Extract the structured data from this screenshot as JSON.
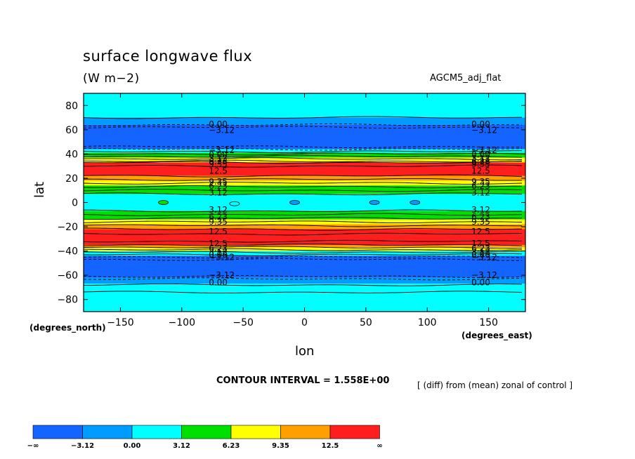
{
  "title": "surface longwave flux",
  "units": "(W m−2)",
  "model": "AGCM5_adj_flat",
  "xlabel": "lon",
  "ylabel": "lat",
  "x_axis_title": "(degrees_east)",
  "y_axis_title": "(degrees_north)",
  "contour_interval": "CONTOUR INTERVAL = 1.558E+00",
  "diff_note": "[ (diff) from (mean) zonal of control ]",
  "chart_data": {
    "type": "heatmap",
    "xlim": [
      -180,
      180
    ],
    "ylim": [
      -90,
      90
    ],
    "xticks": [
      -150,
      -100,
      -50,
      0,
      50,
      100,
      150
    ],
    "xtick_labels": [
      "−150",
      "−100",
      "−50",
      "0",
      "50",
      "100",
      "150"
    ],
    "yticks": [
      80,
      60,
      40,
      20,
      0,
      -20,
      -40,
      -60,
      -80
    ],
    "ytick_labels": [
      "80",
      "60",
      "40",
      "20",
      "0",
      "−20",
      "−40",
      "−60",
      "−80"
    ],
    "levels": [
      -3.12,
      0.0,
      3.12,
      6.23,
      9.35,
      12.5
    ],
    "colorbar": {
      "colors": [
        "#1464ff",
        "#009cff",
        "#00ffff",
        "#00e000",
        "#ffff00",
        "#ffa000",
        "#ff1e1e"
      ],
      "labels": [
        "−∞",
        "−3.12",
        "0.00",
        "3.12",
        "6.23",
        "9.35",
        "12.5",
        "∞"
      ]
    },
    "bands": [
      {
        "lat": [
          70,
          90
        ],
        "value": 0.5
      },
      {
        "lat": [
          64,
          70
        ],
        "value": -1.5
      },
      {
        "lat": [
          44,
          64
        ],
        "value": -4.5
      },
      {
        "lat": [
          41,
          44
        ],
        "value": 1.5
      },
      {
        "lat": [
          37,
          41
        ],
        "value": 4.5
      },
      {
        "lat": [
          33,
          37
        ],
        "value": 8.0
      },
      {
        "lat": [
          22,
          33
        ],
        "value": 14.0
      },
      {
        "lat": [
          18,
          22
        ],
        "value": 11.0
      },
      {
        "lat": [
          14,
          18
        ],
        "value": 8.0
      },
      {
        "lat": [
          7,
          14
        ],
        "value": 4.5
      },
      {
        "lat": [
          -7,
          7
        ],
        "value": 1.5
      },
      {
        "lat": [
          -14,
          -7
        ],
        "value": 4.5
      },
      {
        "lat": [
          -18,
          -14
        ],
        "value": 8.0
      },
      {
        "lat": [
          -22,
          -18
        ],
        "value": 11.0
      },
      {
        "lat": [
          -35,
          -22
        ],
        "value": 14.0
      },
      {
        "lat": [
          -37,
          -35
        ],
        "value": 11.0
      },
      {
        "lat": [
          -40,
          -37
        ],
        "value": 8.0
      },
      {
        "lat": [
          -44,
          -40
        ],
        "value": 3.0
      },
      {
        "lat": [
          -62,
          -44
        ],
        "value": -4.5
      },
      {
        "lat": [
          -67,
          -62
        ],
        "value": -1.5
      },
      {
        "lat": [
          -90,
          -67
        ],
        "value": 0.5
      }
    ],
    "contour_lines": [
      {
        "lat": 70,
        "style": "solid"
      },
      {
        "lat": 64,
        "style": "dashed"
      },
      {
        "lat": 62,
        "style": "dashed"
      },
      {
        "lat": 46,
        "style": "dashed"
      },
      {
        "lat": 44,
        "style": "dashed"
      },
      {
        "lat": 42,
        "style": "solid"
      },
      {
        "lat": 40,
        "style": "solid"
      },
      {
        "lat": 38,
        "style": "solid"
      },
      {
        "lat": 36,
        "style": "solid"
      },
      {
        "lat": 34,
        "style": "solid"
      },
      {
        "lat": 33,
        "style": "solid"
      },
      {
        "lat": 30,
        "style": "solid"
      },
      {
        "lat": 22,
        "style": "solid"
      },
      {
        "lat": 19,
        "style": "solid"
      },
      {
        "lat": 16,
        "style": "solid"
      },
      {
        "lat": 13,
        "style": "solid"
      },
      {
        "lat": 10,
        "style": "solid"
      },
      {
        "lat": 7,
        "style": "solid"
      },
      {
        "lat": -7,
        "style": "solid"
      },
      {
        "lat": -10,
        "style": "solid"
      },
      {
        "lat": -13,
        "style": "solid"
      },
      {
        "lat": -16,
        "style": "solid"
      },
      {
        "lat": -19,
        "style": "solid"
      },
      {
        "lat": -22,
        "style": "solid"
      },
      {
        "lat": -26,
        "style": "solid"
      },
      {
        "lat": -32,
        "style": "solid"
      },
      {
        "lat": -35,
        "style": "solid"
      },
      {
        "lat": -37,
        "style": "solid"
      },
      {
        "lat": -39,
        "style": "solid"
      },
      {
        "lat": -41,
        "style": "solid"
      },
      {
        "lat": -43,
        "style": "solid"
      },
      {
        "lat": -45,
        "style": "dashed"
      },
      {
        "lat": -47,
        "style": "dashed"
      },
      {
        "lat": -61,
        "style": "dashed"
      },
      {
        "lat": -63,
        "style": "dashed"
      },
      {
        "lat": -68,
        "style": "solid"
      },
      {
        "lat": -74,
        "style": "solid"
      }
    ],
    "contour_labels": [
      {
        "lat": 64.5,
        "text": "0.00"
      },
      {
        "lat": 59.5,
        "text": "−3.12"
      },
      {
        "lat": 43,
        "text": "−3.12"
      },
      {
        "lat": 39.5,
        "text": "0.00"
      },
      {
        "lat": 36.5,
        "text": "3.12"
      },
      {
        "lat": 34,
        "text": "6.23"
      },
      {
        "lat": 31.5,
        "text": "9.35"
      },
      {
        "lat": 26,
        "text": "12.5"
      },
      {
        "lat": 17,
        "text": "9.35"
      },
      {
        "lat": 13.5,
        "text": "6.23"
      },
      {
        "lat": 8,
        "text": "3.12"
      },
      {
        "lat": -6,
        "text": "3.12"
      },
      {
        "lat": -12,
        "text": "6.23"
      },
      {
        "lat": -16,
        "text": "9.35"
      },
      {
        "lat": -24,
        "text": "12.5"
      },
      {
        "lat": -34,
        "text": "12.5"
      },
      {
        "lat": -38,
        "text": "6.23"
      },
      {
        "lat": -41,
        "text": "3.12"
      },
      {
        "lat": -43,
        "text": "0.00"
      },
      {
        "lat": -45,
        "text": "−3.12"
      },
      {
        "lat": -60,
        "text": "−3.12"
      },
      {
        "lat": -66,
        "text": "0.00"
      }
    ],
    "contour_label_lons": [
      -78,
      136
    ],
    "blobs": [
      {
        "lon": -115,
        "lat": 0,
        "value": 4.5
      },
      {
        "lon": -57,
        "lat": -1,
        "value": 0.5
      },
      {
        "lon": -8,
        "lat": 0,
        "value": -1.5
      },
      {
        "lon": 57,
        "lat": 0,
        "value": -1.5
      },
      {
        "lon": 90,
        "lat": 0,
        "value": -1.5
      }
    ]
  }
}
